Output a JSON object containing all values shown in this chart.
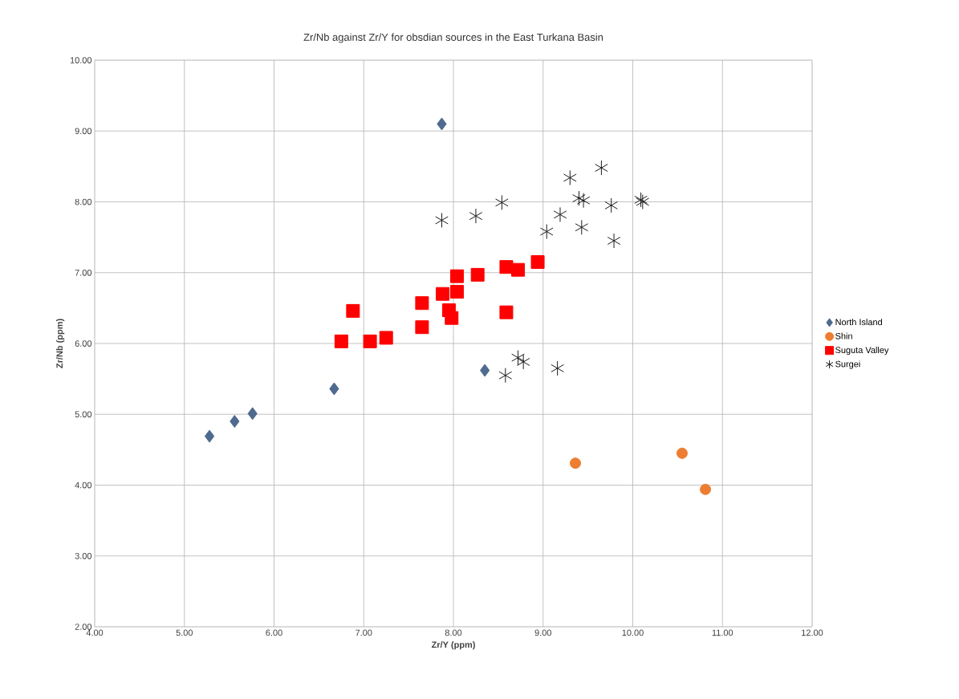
{
  "chart_data": {
    "type": "scatter",
    "title": "Zr/Nb against Zr/Y for obsdian sources in the East Turkana Basin",
    "xlabel": "Zr/Y (ppm)",
    "ylabel": "Zr/Nb (ppm)",
    "xlim": [
      4,
      12
    ],
    "ylim": [
      2,
      10
    ],
    "xticks": [
      {
        "value": 4,
        "label": "4.00"
      },
      {
        "value": 5,
        "label": "5.00"
      },
      {
        "value": 6,
        "label": "6.00"
      },
      {
        "value": 7,
        "label": "7.00"
      },
      {
        "value": 8,
        "label": "8.00"
      },
      {
        "value": 9,
        "label": "9.00"
      },
      {
        "value": 10,
        "label": "10.00"
      },
      {
        "value": 11,
        "label": "11.00"
      },
      {
        "value": 12,
        "label": "12.00"
      }
    ],
    "yticks": [
      {
        "value": 2,
        "label": "2.00"
      },
      {
        "value": 3,
        "label": "3.00"
      },
      {
        "value": 4,
        "label": "4.00"
      },
      {
        "value": 5,
        "label": "5.00"
      },
      {
        "value": 6,
        "label": "6.00"
      },
      {
        "value": 7,
        "label": "7.00"
      },
      {
        "value": 8,
        "label": "8.00"
      },
      {
        "value": 9,
        "label": "9.00"
      },
      {
        "value": 10,
        "label": "10.00"
      }
    ],
    "grid": true,
    "legend": "right",
    "series": [
      {
        "name": "North Island",
        "color": "#4e6a8e",
        "marker": "diamond",
        "x": [
          5.28,
          5.56,
          5.76,
          6.67,
          7.87,
          8.35
        ],
        "values": [
          4.69,
          4.9,
          5.01,
          5.36,
          9.1,
          5.62
        ]
      },
      {
        "name": "Shin",
        "color": "#ed7d31",
        "marker": "circle",
        "x": [
          9.36,
          10.55,
          10.81
        ],
        "values": [
          4.31,
          4.45,
          3.94
        ]
      },
      {
        "name": "Suguta Valley",
        "color": "#ff0000",
        "marker": "square",
        "x": [
          6.75,
          6.88,
          7.07,
          7.25,
          7.65,
          7.65,
          7.88,
          7.95,
          7.98,
          8.04,
          8.04,
          8.27,
          8.59,
          8.72,
          8.59,
          8.94
        ],
        "values": [
          6.03,
          6.46,
          6.03,
          6.08,
          6.57,
          6.23,
          6.7,
          6.47,
          6.36,
          6.95,
          6.73,
          6.97,
          7.08,
          7.04,
          6.44,
          7.15
        ]
      },
      {
        "name": "Surgei",
        "color": "#1a1a1a",
        "marker": "cross",
        "x": [
          7.87,
          8.25,
          8.54,
          9.04,
          9.19,
          9.3,
          9.43,
          9.4,
          9.45,
          9.65,
          9.76,
          9.79,
          10.09,
          10.11,
          8.58,
          8.72,
          8.78,
          9.16
        ],
        "values": [
          7.74,
          7.8,
          7.99,
          7.58,
          7.82,
          8.34,
          7.64,
          8.05,
          8.02,
          8.48,
          7.95,
          7.45,
          8.03,
          8.0,
          5.55,
          5.8,
          5.74,
          5.65
        ]
      }
    ]
  }
}
